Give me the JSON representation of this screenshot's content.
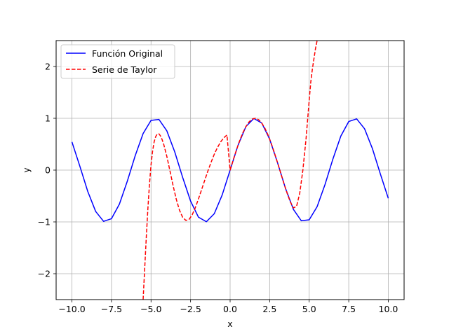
{
  "chart_data": {
    "type": "line",
    "xlabel": "x",
    "ylabel": "y",
    "xlim": [
      -11,
      11
    ],
    "ylim": [
      -2.5,
      2.5
    ],
    "grid": true,
    "legend_position": "top-left",
    "x_ticks": [
      -10.0,
      -7.5,
      -5.0,
      -2.5,
      0.0,
      2.5,
      5.0,
      7.5,
      10.0
    ],
    "x_tick_labels": [
      "−10.0",
      "−7.5",
      "−5.0",
      "−2.5",
      "0.0",
      "2.5",
      "5.0",
      "7.5",
      "10.0"
    ],
    "y_ticks": [
      -2,
      -1,
      0,
      1,
      2
    ],
    "y_tick_labels": [
      "−2",
      "−1",
      "0",
      "1",
      "2"
    ],
    "series": [
      {
        "name": "Función Original",
        "color": "#0000ff",
        "style": "solid",
        "x": [
          -10.0,
          -9.5,
          -9.0,
          -8.5,
          -8.0,
          -7.5,
          -7.0,
          -6.5,
          -6.0,
          -5.5,
          -5.0,
          -4.5,
          -4.0,
          -3.5,
          -3.0,
          -2.5,
          -2.0,
          -1.5,
          -1.0,
          -0.5,
          0.0,
          0.5,
          1.0,
          1.5,
          2.0,
          2.5,
          3.0,
          3.5,
          4.0,
          4.5,
          5.0,
          5.5,
          6.0,
          6.5,
          7.0,
          7.5,
          8.0,
          8.5,
          9.0,
          9.5,
          10.0
        ],
        "y": [
          0.544,
          0.075,
          -0.412,
          -0.798,
          -0.989,
          -0.938,
          -0.657,
          -0.215,
          0.279,
          0.706,
          0.959,
          0.978,
          0.757,
          0.351,
          -0.141,
          -0.598,
          -0.909,
          -0.997,
          -0.841,
          -0.479,
          0.0,
          0.479,
          0.841,
          0.997,
          0.909,
          0.598,
          0.141,
          -0.351,
          -0.757,
          -0.978,
          -0.959,
          -0.706,
          -0.279,
          0.215,
          0.657,
          0.938,
          0.989,
          0.798,
          0.412,
          -0.075,
          -0.544
        ]
      },
      {
        "name": "Serie de Taylor",
        "color": "#ff0000",
        "style": "dashed",
        "x": [
          -5.5,
          -5.4,
          -5.3,
          -5.2,
          -5.1,
          -5.0,
          -4.9,
          -4.8,
          -4.7,
          -4.6,
          -4.5,
          -4.4,
          -4.3,
          -4.2,
          -4.0,
          -3.8,
          -3.6,
          -3.4,
          -3.2,
          -3.0,
          -2.8,
          -2.6,
          -2.4,
          -2.2,
          -2.0,
          -1.8,
          -1.6,
          -1.4,
          -1.2,
          -1.0,
          -0.8,
          -0.6,
          -0.4,
          -0.2,
          0.0,
          0.2,
          0.4,
          0.6,
          0.8,
          1.0,
          1.2,
          1.4,
          1.6,
          1.8,
          2.0,
          2.2,
          2.4,
          2.6,
          2.8,
          3.0,
          3.2,
          3.4,
          3.6,
          3.8,
          4.0,
          4.2,
          4.4,
          4.6,
          4.8,
          5.0,
          5.1,
          5.2,
          5.3,
          5.4,
          5.5
        ],
        "y": [
          -2.5,
          -1.9,
          -1.3,
          -0.75,
          -0.28,
          0.1,
          0.37,
          0.55,
          0.65,
          0.7,
          0.7,
          0.66,
          0.59,
          0.5,
          0.264,
          -0.019,
          -0.307,
          -0.567,
          -0.775,
          -0.912,
          -0.971,
          -0.953,
          -0.865,
          -0.725,
          -0.556,
          -0.375,
          -0.192,
          -0.013,
          0.154,
          0.307,
          0.436,
          0.544,
          0.623,
          0.678,
          0.0,
          0.199,
          0.389,
          0.565,
          0.717,
          0.841,
          0.932,
          0.985,
          0.9996,
          0.974,
          0.909,
          0.808,
          0.676,
          0.516,
          0.335,
          0.141,
          -0.058,
          -0.255,
          -0.442,
          -0.611,
          -0.73,
          -0.7,
          -0.45,
          0.0,
          0.6,
          1.35,
          1.7,
          1.95,
          2.15,
          2.35,
          2.5
        ]
      }
    ]
  }
}
